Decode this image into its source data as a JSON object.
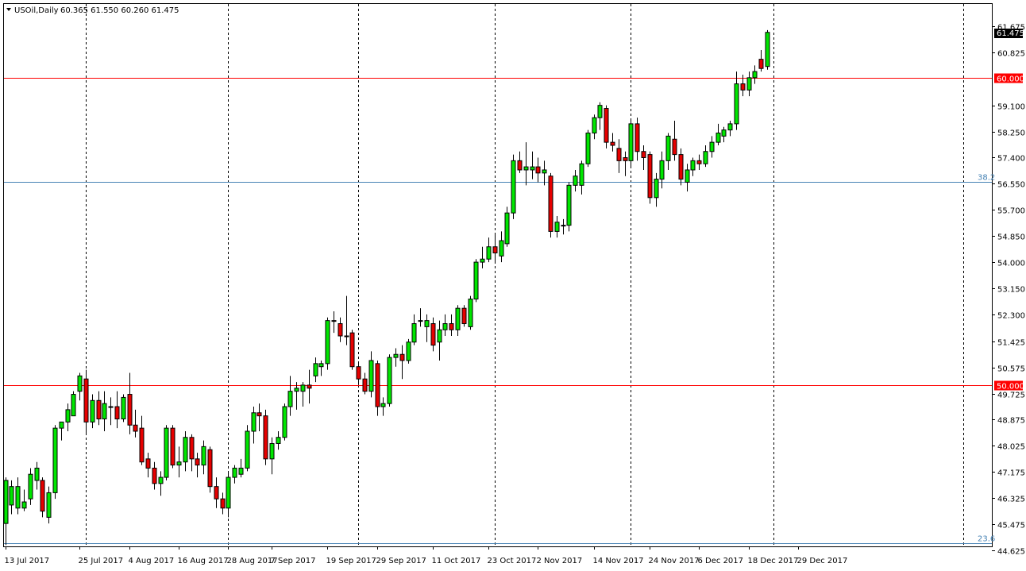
{
  "chart_data": {
    "type": "candlestick",
    "title": "USOil,Daily",
    "ohlc_readout": "60.365 61.550 60.260 61.475",
    "current_price_label": "61.475",
    "ylim": [
      44.625,
      62.3
    ],
    "y_ticks": [
      "61.675",
      "60.825",
      "59.100",
      "58.250",
      "57.400",
      "56.550",
      "55.700",
      "54.850",
      "54.000",
      "53.150",
      "52.300",
      "51.425",
      "50.575",
      "49.725",
      "48.875",
      "48.025",
      "47.175",
      "46.325",
      "45.475",
      "44.625"
    ],
    "x_labels": [
      "13 Jul 2017",
      "25 Jul 2017",
      "4 Aug 2017",
      "16 Aug 2017",
      "28 Aug 2017",
      "7 Sep 2017",
      "19 Sep 2017",
      "29 Sep 2017",
      "11 Oct 2017",
      "23 Oct 2017",
      "2 Nov 2017",
      "14 Nov 2017",
      "24 Nov 2017",
      "6 Dec 2017",
      "18 Dec 2017",
      "29 Dec 2017"
    ],
    "x_label_bar_index": [
      0,
      12,
      20,
      28,
      36,
      43,
      52,
      60,
      69,
      78,
      86,
      95,
      104,
      112,
      120,
      128
    ],
    "separator_bar_index": [
      13,
      36,
      57,
      79,
      101,
      124
    ],
    "horizontal_levels": [
      {
        "value": 60.0,
        "label": "60.000",
        "color": "#ff0000",
        "style": "price"
      },
      {
        "value": 50.0,
        "label": "50.000",
        "color": "#ff0000",
        "style": "price"
      },
      {
        "value": 56.62,
        "label": "38.2",
        "color": "#4682b4",
        "style": "fib"
      },
      {
        "value": 44.85,
        "label": "23.6",
        "color": "#4682b4",
        "style": "fib"
      }
    ],
    "colors": {
      "bull": "#00e600",
      "bear": "#e60000",
      "wick": "#000000",
      "grid": "#000000",
      "axis": "#000000"
    },
    "grid": "vertical-dashed",
    "candles": [
      {
        "o": 45.5,
        "h": 47.0,
        "l": 44.8,
        "c": 46.9
      },
      {
        "o": 46.1,
        "h": 46.9,
        "l": 45.8,
        "c": 46.7
      },
      {
        "o": 46.0,
        "h": 47.0,
        "l": 45.8,
        "c": 46.7
      },
      {
        "o": 46.0,
        "h": 46.6,
        "l": 45.9,
        "c": 46.2
      },
      {
        "o": 46.3,
        "h": 47.3,
        "l": 46.1,
        "c": 47.1
      },
      {
        "o": 46.9,
        "h": 47.5,
        "l": 46.6,
        "c": 47.3
      },
      {
        "o": 46.9,
        "h": 47.0,
        "l": 45.7,
        "c": 45.9
      },
      {
        "o": 45.7,
        "h": 46.7,
        "l": 45.5,
        "c": 46.5
      },
      {
        "o": 46.5,
        "h": 48.7,
        "l": 46.3,
        "c": 48.6
      },
      {
        "o": 48.6,
        "h": 48.8,
        "l": 48.2,
        "c": 48.8
      },
      {
        "o": 48.8,
        "h": 49.4,
        "l": 48.5,
        "c": 49.2
      },
      {
        "o": 49.0,
        "h": 49.8,
        "l": 49.0,
        "c": 49.7
      },
      {
        "o": 49.8,
        "h": 50.4,
        "l": 49.5,
        "c": 50.3
      },
      {
        "o": 50.2,
        "h": 50.5,
        "l": 48.4,
        "c": 48.8
      },
      {
        "o": 48.8,
        "h": 49.7,
        "l": 48.6,
        "c": 49.5
      },
      {
        "o": 49.5,
        "h": 49.8,
        "l": 48.7,
        "c": 48.9
      },
      {
        "o": 48.9,
        "h": 49.8,
        "l": 48.5,
        "c": 49.4
      },
      {
        "o": 49.3,
        "h": 49.6,
        "l": 48.7,
        "c": 49.3
      },
      {
        "o": 49.3,
        "h": 49.8,
        "l": 48.6,
        "c": 48.9
      },
      {
        "o": 48.9,
        "h": 49.7,
        "l": 48.8,
        "c": 49.6
      },
      {
        "o": 49.7,
        "h": 50.4,
        "l": 48.4,
        "c": 48.7
      },
      {
        "o": 48.7,
        "h": 49.2,
        "l": 48.3,
        "c": 48.5
      },
      {
        "o": 48.6,
        "h": 49.0,
        "l": 47.4,
        "c": 47.5
      },
      {
        "o": 47.6,
        "h": 47.8,
        "l": 47.0,
        "c": 47.3
      },
      {
        "o": 47.3,
        "h": 47.5,
        "l": 46.6,
        "c": 46.8
      },
      {
        "o": 46.8,
        "h": 47.2,
        "l": 46.4,
        "c": 47.0
      },
      {
        "o": 47.0,
        "h": 48.7,
        "l": 46.9,
        "c": 48.6
      },
      {
        "o": 48.6,
        "h": 48.7,
        "l": 47.3,
        "c": 47.4
      },
      {
        "o": 47.4,
        "h": 48.0,
        "l": 47.0,
        "c": 47.5
      },
      {
        "o": 47.5,
        "h": 48.5,
        "l": 47.2,
        "c": 48.3
      },
      {
        "o": 48.3,
        "h": 48.4,
        "l": 47.2,
        "c": 47.6
      },
      {
        "o": 47.6,
        "h": 47.8,
        "l": 47.0,
        "c": 47.4
      },
      {
        "o": 47.4,
        "h": 48.2,
        "l": 47.1,
        "c": 48.0
      },
      {
        "o": 47.9,
        "h": 48.0,
        "l": 46.5,
        "c": 46.7
      },
      {
        "o": 46.7,
        "h": 47.0,
        "l": 46.0,
        "c": 46.3
      },
      {
        "o": 46.3,
        "h": 46.5,
        "l": 45.8,
        "c": 46.0
      },
      {
        "o": 46.0,
        "h": 47.2,
        "l": 45.7,
        "c": 47.0
      },
      {
        "o": 47.0,
        "h": 47.4,
        "l": 46.8,
        "c": 47.3
      },
      {
        "o": 47.1,
        "h": 47.6,
        "l": 47.0,
        "c": 47.3
      },
      {
        "o": 47.3,
        "h": 48.7,
        "l": 47.2,
        "c": 48.5
      },
      {
        "o": 48.5,
        "h": 49.3,
        "l": 48.1,
        "c": 49.1
      },
      {
        "o": 49.1,
        "h": 49.4,
        "l": 48.5,
        "c": 49.0
      },
      {
        "o": 49.0,
        "h": 49.2,
        "l": 47.4,
        "c": 47.6
      },
      {
        "o": 47.6,
        "h": 48.3,
        "l": 47.1,
        "c": 48.1
      },
      {
        "o": 48.1,
        "h": 48.5,
        "l": 47.9,
        "c": 48.3
      },
      {
        "o": 48.3,
        "h": 49.4,
        "l": 48.2,
        "c": 49.3
      },
      {
        "o": 49.3,
        "h": 50.3,
        "l": 49.0,
        "c": 49.8
      },
      {
        "o": 49.8,
        "h": 50.1,
        "l": 49.2,
        "c": 49.9
      },
      {
        "o": 49.8,
        "h": 50.1,
        "l": 49.3,
        "c": 50.0
      },
      {
        "o": 50.0,
        "h": 50.5,
        "l": 49.4,
        "c": 49.9
      },
      {
        "o": 50.3,
        "h": 50.9,
        "l": 50.1,
        "c": 50.7
      },
      {
        "o": 50.6,
        "h": 50.8,
        "l": 50.3,
        "c": 50.7
      },
      {
        "o": 50.7,
        "h": 52.2,
        "l": 50.5,
        "c": 52.1
      },
      {
        "o": 52.1,
        "h": 52.4,
        "l": 51.7,
        "c": 52.1
      },
      {
        "o": 52.0,
        "h": 52.2,
        "l": 51.4,
        "c": 51.6
      },
      {
        "o": 51.6,
        "h": 52.9,
        "l": 51.3,
        "c": 51.6
      },
      {
        "o": 51.7,
        "h": 51.8,
        "l": 50.5,
        "c": 50.6
      },
      {
        "o": 50.6,
        "h": 50.7,
        "l": 50.0,
        "c": 50.2
      },
      {
        "o": 50.2,
        "h": 50.4,
        "l": 49.7,
        "c": 49.8
      },
      {
        "o": 49.8,
        "h": 51.1,
        "l": 49.6,
        "c": 50.8
      },
      {
        "o": 50.7,
        "h": 50.8,
        "l": 49.0,
        "c": 49.3
      },
      {
        "o": 49.3,
        "h": 49.6,
        "l": 49.0,
        "c": 49.4
      },
      {
        "o": 49.4,
        "h": 51.0,
        "l": 49.3,
        "c": 50.9
      },
      {
        "o": 50.9,
        "h": 51.2,
        "l": 50.6,
        "c": 51.0
      },
      {
        "o": 51.0,
        "h": 51.3,
        "l": 50.2,
        "c": 50.8
      },
      {
        "o": 50.8,
        "h": 51.5,
        "l": 50.7,
        "c": 51.4
      },
      {
        "o": 51.4,
        "h": 52.3,
        "l": 51.3,
        "c": 52.0
      },
      {
        "o": 52.1,
        "h": 52.5,
        "l": 51.9,
        "c": 52.1
      },
      {
        "o": 51.9,
        "h": 52.3,
        "l": 51.4,
        "c": 52.1
      },
      {
        "o": 52.0,
        "h": 52.2,
        "l": 51.1,
        "c": 51.3
      },
      {
        "o": 51.4,
        "h": 52.1,
        "l": 50.8,
        "c": 51.8
      },
      {
        "o": 51.8,
        "h": 52.3,
        "l": 51.6,
        "c": 52.0
      },
      {
        "o": 52.0,
        "h": 52.3,
        "l": 51.6,
        "c": 51.8
      },
      {
        "o": 51.8,
        "h": 52.6,
        "l": 51.6,
        "c": 52.5
      },
      {
        "o": 52.5,
        "h": 52.6,
        "l": 51.9,
        "c": 52.0
      },
      {
        "o": 51.9,
        "h": 52.9,
        "l": 51.8,
        "c": 52.8
      },
      {
        "o": 52.8,
        "h": 54.1,
        "l": 52.7,
        "c": 54.0
      },
      {
        "o": 54.0,
        "h": 54.5,
        "l": 53.8,
        "c": 54.1
      },
      {
        "o": 54.1,
        "h": 54.8,
        "l": 54.0,
        "c": 54.5
      },
      {
        "o": 54.5,
        "h": 54.9,
        "l": 54.0,
        "c": 54.3
      },
      {
        "o": 54.2,
        "h": 55.0,
        "l": 54.0,
        "c": 54.7
      },
      {
        "o": 54.6,
        "h": 55.8,
        "l": 54.5,
        "c": 55.6
      },
      {
        "o": 55.6,
        "h": 57.5,
        "l": 55.4,
        "c": 57.3
      },
      {
        "o": 57.3,
        "h": 57.6,
        "l": 56.9,
        "c": 57.0
      },
      {
        "o": 57.0,
        "h": 57.9,
        "l": 56.5,
        "c": 57.1
      },
      {
        "o": 57.0,
        "h": 57.6,
        "l": 56.7,
        "c": 57.1
      },
      {
        "o": 57.1,
        "h": 57.4,
        "l": 56.6,
        "c": 56.9
      },
      {
        "o": 56.9,
        "h": 57.3,
        "l": 56.5,
        "c": 57.0
      },
      {
        "o": 56.8,
        "h": 56.9,
        "l": 54.8,
        "c": 55.0
      },
      {
        "o": 55.0,
        "h": 55.5,
        "l": 54.8,
        "c": 55.3
      },
      {
        "o": 55.2,
        "h": 55.4,
        "l": 54.9,
        "c": 55.2
      },
      {
        "o": 55.2,
        "h": 56.6,
        "l": 55.0,
        "c": 56.5
      },
      {
        "o": 56.5,
        "h": 57.0,
        "l": 56.3,
        "c": 56.8
      },
      {
        "o": 56.5,
        "h": 57.3,
        "l": 56.2,
        "c": 57.2
      },
      {
        "o": 57.2,
        "h": 58.3,
        "l": 57.1,
        "c": 58.2
      },
      {
        "o": 58.2,
        "h": 58.8,
        "l": 58.0,
        "c": 58.7
      },
      {
        "o": 58.7,
        "h": 59.2,
        "l": 58.3,
        "c": 59.1
      },
      {
        "o": 59.0,
        "h": 59.1,
        "l": 57.7,
        "c": 57.9
      },
      {
        "o": 57.9,
        "h": 58.2,
        "l": 57.6,
        "c": 57.8
      },
      {
        "o": 57.7,
        "h": 58.0,
        "l": 56.9,
        "c": 57.3
      },
      {
        "o": 57.4,
        "h": 57.6,
        "l": 56.8,
        "c": 57.3
      },
      {
        "o": 57.3,
        "h": 58.6,
        "l": 57.1,
        "c": 58.5
      },
      {
        "o": 58.5,
        "h": 58.7,
        "l": 57.3,
        "c": 57.6
      },
      {
        "o": 57.6,
        "h": 57.8,
        "l": 57.0,
        "c": 57.4
      },
      {
        "o": 57.5,
        "h": 57.6,
        "l": 55.9,
        "c": 56.1
      },
      {
        "o": 56.1,
        "h": 56.9,
        "l": 55.8,
        "c": 56.7
      },
      {
        "o": 56.7,
        "h": 57.6,
        "l": 56.4,
        "c": 57.3
      },
      {
        "o": 57.3,
        "h": 58.2,
        "l": 57.0,
        "c": 58.1
      },
      {
        "o": 58.0,
        "h": 58.6,
        "l": 57.3,
        "c": 57.5
      },
      {
        "o": 57.5,
        "h": 57.7,
        "l": 56.5,
        "c": 56.7
      },
      {
        "o": 56.6,
        "h": 57.2,
        "l": 56.3,
        "c": 57.0
      },
      {
        "o": 57.0,
        "h": 57.4,
        "l": 56.8,
        "c": 57.3
      },
      {
        "o": 57.3,
        "h": 57.5,
        "l": 57.0,
        "c": 57.2
      },
      {
        "o": 57.2,
        "h": 57.8,
        "l": 57.1,
        "c": 57.6
      },
      {
        "o": 57.6,
        "h": 58.1,
        "l": 57.4,
        "c": 57.9
      },
      {
        "o": 57.9,
        "h": 58.5,
        "l": 57.8,
        "c": 58.2
      },
      {
        "o": 58.1,
        "h": 58.4,
        "l": 57.9,
        "c": 58.3
      },
      {
        "o": 58.3,
        "h": 58.6,
        "l": 58.1,
        "c": 58.5
      },
      {
        "o": 58.5,
        "h": 60.2,
        "l": 58.3,
        "c": 59.8
      },
      {
        "o": 59.8,
        "h": 60.1,
        "l": 59.4,
        "c": 59.6
      },
      {
        "o": 59.6,
        "h": 60.2,
        "l": 59.4,
        "c": 60.0
      },
      {
        "o": 60.0,
        "h": 60.4,
        "l": 59.8,
        "c": 60.2
      },
      {
        "o": 60.6,
        "h": 60.9,
        "l": 60.2,
        "c": 60.3
      },
      {
        "o": 60.365,
        "h": 61.55,
        "l": 60.26,
        "c": 61.475
      }
    ]
  }
}
